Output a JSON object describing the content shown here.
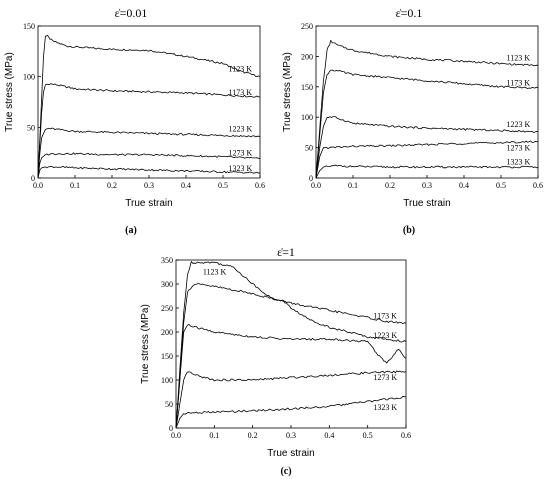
{
  "chart_data": [
    {
      "type": "line",
      "panel_label": "(a)",
      "title": "ε̇=0.01",
      "xlabel": "True strain",
      "ylabel": "True stress (MPa)",
      "xlim": [
        0.0,
        0.6
      ],
      "ylim": [
        0,
        150
      ],
      "x_ticks": [
        "0.0",
        "0.1",
        "0.2",
        "0.3",
        "0.4",
        "0.5",
        "0.6"
      ],
      "y_ticks": [
        "0",
        "50",
        "100",
        "150"
      ],
      "grid": false,
      "series": [
        {
          "name": "1123 K",
          "x": [
            0.0,
            0.005,
            0.01,
            0.015,
            0.02,
            0.025,
            0.04,
            0.08,
            0.15,
            0.2,
            0.3,
            0.4,
            0.5,
            0.55,
            0.6
          ],
          "y": [
            0,
            40,
            80,
            120,
            140,
            140,
            135,
            130,
            128,
            127,
            126,
            120,
            113,
            105,
            100
          ]
        },
        {
          "name": "1173 K",
          "x": [
            0.0,
            0.005,
            0.01,
            0.015,
            0.02,
            0.03,
            0.05,
            0.1,
            0.2,
            0.3,
            0.4,
            0.5,
            0.55,
            0.6
          ],
          "y": [
            0,
            35,
            65,
            85,
            92,
            93,
            92,
            88,
            86,
            85,
            84,
            82,
            81,
            80
          ]
        },
        {
          "name": "1223 K",
          "x": [
            0.0,
            0.005,
            0.01,
            0.02,
            0.03,
            0.05,
            0.1,
            0.2,
            0.3,
            0.4,
            0.5,
            0.6
          ],
          "y": [
            0,
            25,
            40,
            48,
            49,
            48,
            46,
            45,
            44,
            43,
            42,
            41
          ]
        },
        {
          "name": "1273 K",
          "x": [
            0.0,
            0.005,
            0.01,
            0.02,
            0.04,
            0.1,
            0.2,
            0.3,
            0.4,
            0.5,
            0.55,
            0.6
          ],
          "y": [
            0,
            15,
            20,
            23,
            24,
            24,
            23,
            23,
            22,
            21,
            20,
            19
          ]
        },
        {
          "name": "1323 K",
          "x": [
            0.0,
            0.005,
            0.01,
            0.02,
            0.05,
            0.1,
            0.2,
            0.3,
            0.4,
            0.5,
            0.6
          ],
          "y": [
            0,
            8,
            10,
            11,
            11,
            10,
            9,
            8,
            7,
            6,
            5
          ]
        }
      ],
      "annotations": [
        {
          "text": "1123 K",
          "x": 0.515,
          "y": 105
        },
        {
          "text": "1173 K",
          "x": 0.515,
          "y": 82
        },
        {
          "text": "1223 K",
          "x": 0.515,
          "y": 46
        },
        {
          "text": "1273 K",
          "x": 0.515,
          "y": 22
        },
        {
          "text": "1323 K",
          "x": 0.515,
          "y": 7
        }
      ]
    },
    {
      "type": "line",
      "panel_label": "(b)",
      "title": "ε̇=0.1",
      "xlabel": "True strain",
      "ylabel": "True stress (MPa)",
      "xlim": [
        0.0,
        0.6
      ],
      "ylim": [
        0,
        250
      ],
      "x_ticks": [
        "0.0",
        "0.1",
        "0.2",
        "0.3",
        "0.4",
        "0.5",
        "0.6"
      ],
      "y_ticks": [
        "0",
        "50",
        "100",
        "150",
        "200",
        "250"
      ],
      "grid": false,
      "series": [
        {
          "name": "1123 K",
          "x": [
            0.0,
            0.01,
            0.02,
            0.03,
            0.04,
            0.06,
            0.1,
            0.2,
            0.3,
            0.4,
            0.5,
            0.6
          ],
          "y": [
            0,
            80,
            160,
            210,
            225,
            218,
            210,
            200,
            195,
            192,
            188,
            185
          ]
        },
        {
          "name": "1173 K",
          "x": [
            0.0,
            0.01,
            0.02,
            0.03,
            0.04,
            0.06,
            0.1,
            0.2,
            0.3,
            0.4,
            0.5,
            0.6
          ],
          "y": [
            0,
            70,
            140,
            170,
            178,
            176,
            170,
            165,
            160,
            155,
            150,
            148
          ]
        },
        {
          "name": "1223 K",
          "x": [
            0.0,
            0.01,
            0.02,
            0.03,
            0.05,
            0.1,
            0.2,
            0.3,
            0.4,
            0.5,
            0.6
          ],
          "y": [
            0,
            50,
            85,
            100,
            100,
            90,
            85,
            82,
            80,
            78,
            76
          ]
        },
        {
          "name": "1273 K",
          "x": [
            0.0,
            0.01,
            0.02,
            0.04,
            0.1,
            0.2,
            0.3,
            0.4,
            0.5,
            0.6
          ],
          "y": [
            0,
            35,
            50,
            50,
            52,
            53,
            55,
            57,
            58,
            60
          ]
        },
        {
          "name": "1323 K",
          "x": [
            0.0,
            0.01,
            0.02,
            0.05,
            0.1,
            0.2,
            0.3,
            0.4,
            0.5,
            0.6
          ],
          "y": [
            0,
            12,
            18,
            20,
            19,
            18,
            18,
            18,
            18,
            18
          ]
        }
      ],
      "annotations": [
        {
          "text": "1123 K",
          "x": 0.515,
          "y": 193
        },
        {
          "text": "1173 K",
          "x": 0.515,
          "y": 152
        },
        {
          "text": "1223 K",
          "x": 0.515,
          "y": 84
        },
        {
          "text": "1273 K",
          "x": 0.515,
          "y": 45
        },
        {
          "text": "1323 K",
          "x": 0.515,
          "y": 22
        }
      ]
    },
    {
      "type": "line",
      "panel_label": "(c)",
      "title": "ε̇=1",
      "xlabel": "True strain",
      "ylabel": "True stress (MPa)",
      "xlim": [
        0.0,
        0.6
      ],
      "ylim": [
        0,
        350
      ],
      "x_ticks": [
        "0.0",
        "0.1",
        "0.2",
        "0.3",
        "0.4",
        "0.5",
        "0.6"
      ],
      "y_ticks": [
        "0",
        "50",
        "100",
        "150",
        "200",
        "250",
        "300",
        "350"
      ],
      "grid": false,
      "series": [
        {
          "name": "1123 K",
          "x": [
            0.0,
            0.01,
            0.02,
            0.03,
            0.04,
            0.1,
            0.15,
            0.2,
            0.25,
            0.28,
            0.3,
            0.35,
            0.4,
            0.45,
            0.5,
            0.55,
            0.6
          ],
          "y": [
            0,
            120,
            240,
            320,
            345,
            345,
            335,
            300,
            270,
            265,
            250,
            225,
            210,
            200,
            190,
            185,
            180
          ]
        },
        {
          "name": "1173 K",
          "x": [
            0.0,
            0.01,
            0.02,
            0.03,
            0.05,
            0.1,
            0.2,
            0.3,
            0.4,
            0.5,
            0.55,
            0.6
          ],
          "y": [
            0,
            100,
            220,
            285,
            300,
            295,
            280,
            260,
            245,
            230,
            222,
            218
          ]
        },
        {
          "name": "1223 K",
          "x": [
            0.0,
            0.01,
            0.02,
            0.03,
            0.05,
            0.1,
            0.2,
            0.3,
            0.4,
            0.5,
            0.53,
            0.55,
            0.58,
            0.6
          ],
          "y": [
            0,
            100,
            200,
            215,
            210,
            200,
            190,
            185,
            185,
            180,
            150,
            135,
            165,
            145
          ]
        },
        {
          "name": "1273 K",
          "x": [
            0.0,
            0.01,
            0.02,
            0.03,
            0.05,
            0.1,
            0.2,
            0.3,
            0.4,
            0.5,
            0.6
          ],
          "y": [
            0,
            50,
            100,
            118,
            110,
            100,
            100,
            105,
            110,
            115,
            118
          ]
        },
        {
          "name": "1323 K",
          "x": [
            0.0,
            0.01,
            0.02,
            0.05,
            0.1,
            0.2,
            0.3,
            0.4,
            0.5,
            0.6
          ],
          "y": [
            0,
            20,
            30,
            32,
            33,
            36,
            40,
            45,
            55,
            65
          ]
        }
      ],
      "annotations": [
        {
          "text": "1123 K",
          "x": 0.07,
          "y": 320
        },
        {
          "text": "1173 K",
          "x": 0.515,
          "y": 228
        },
        {
          "text": "1223 K",
          "x": 0.515,
          "y": 188
        },
        {
          "text": "1273 K",
          "x": 0.515,
          "y": 100
        },
        {
          "text": "1323 K",
          "x": 0.515,
          "y": 37
        }
      ]
    }
  ]
}
